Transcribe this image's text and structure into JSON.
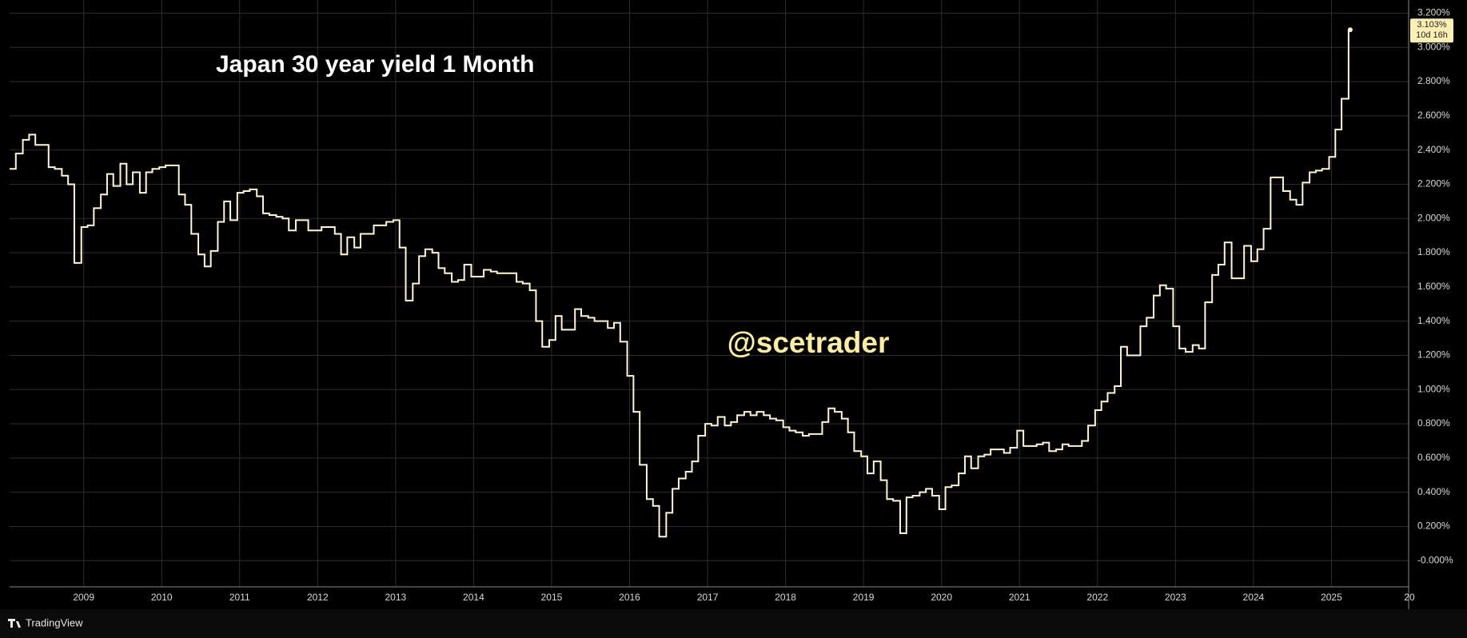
{
  "chart_data": {
    "type": "line",
    "step": "post",
    "title": "Japan 30 year yield 1 Month",
    "watermark": "@scetrader",
    "brand": "TradingView",
    "last_value_label": "3.103%",
    "countdown": "10d 16h",
    "color": "#fff6d5",
    "grid": true,
    "xlim": [
      2008.05,
      2025.99
    ],
    "ylim": [
      -0.153,
      3.277
    ],
    "xticks": [
      2009,
      2010,
      2011,
      2012,
      2013,
      2014,
      2015,
      2016,
      2017,
      2018,
      2019,
      2020,
      2021,
      2022,
      2023,
      2024,
      2025,
      {
        "value": 2026,
        "label": "20"
      }
    ],
    "yticks": [
      {
        "value": 0,
        "label": "-0.000%"
      },
      {
        "value": 0.2,
        "label": "0.200%"
      },
      {
        "value": 0.4,
        "label": "0.400%"
      },
      {
        "value": 0.6,
        "label": "0.600%"
      },
      {
        "value": 0.8,
        "label": "0.800%"
      },
      {
        "value": 1.0,
        "label": "1.000%"
      },
      {
        "value": 1.2,
        "label": "1.200%"
      },
      {
        "value": 1.4,
        "label": "1.400%"
      },
      {
        "value": 1.6,
        "label": "1.600%"
      },
      {
        "value": 1.8,
        "label": "1.800%"
      },
      {
        "value": 2.0,
        "label": "2.000%"
      },
      {
        "value": 2.2,
        "label": "2.200%"
      },
      {
        "value": 2.4,
        "label": "2.400%"
      },
      {
        "value": 2.6,
        "label": "2.600%"
      },
      {
        "value": 2.8,
        "label": "2.800%"
      },
      {
        "value": 3.0,
        "label": "3.000%"
      },
      {
        "value": 3.2,
        "label": "3.200%"
      }
    ],
    "x": [
      2008.05,
      2008.13,
      2008.22,
      2008.3,
      2008.38,
      2008.47,
      2008.55,
      2008.63,
      2008.72,
      2008.8,
      2008.88,
      2008.97,
      2009.05,
      2009.13,
      2009.22,
      2009.3,
      2009.38,
      2009.47,
      2009.55,
      2009.63,
      2009.72,
      2009.8,
      2009.88,
      2009.97,
      2010.05,
      2010.13,
      2010.22,
      2010.3,
      2010.38,
      2010.47,
      2010.55,
      2010.63,
      2010.72,
      2010.8,
      2010.88,
      2010.97,
      2011.05,
      2011.13,
      2011.22,
      2011.3,
      2011.38,
      2011.47,
      2011.55,
      2011.63,
      2011.72,
      2011.8,
      2011.88,
      2011.97,
      2012.05,
      2012.13,
      2012.22,
      2012.3,
      2012.38,
      2012.47,
      2012.55,
      2012.63,
      2012.72,
      2012.8,
      2012.88,
      2012.97,
      2013.05,
      2013.13,
      2013.22,
      2013.3,
      2013.38,
      2013.47,
      2013.55,
      2013.63,
      2013.72,
      2013.8,
      2013.88,
      2013.97,
      2014.05,
      2014.13,
      2014.22,
      2014.3,
      2014.38,
      2014.47,
      2014.55,
      2014.63,
      2014.72,
      2014.8,
      2014.88,
      2014.97,
      2015.05,
      2015.13,
      2015.22,
      2015.3,
      2015.38,
      2015.47,
      2015.55,
      2015.63,
      2015.72,
      2015.8,
      2015.88,
      2015.97,
      2016.05,
      2016.13,
      2016.22,
      2016.3,
      2016.38,
      2016.47,
      2016.55,
      2016.63,
      2016.72,
      2016.8,
      2016.88,
      2016.97,
      2017.05,
      2017.13,
      2017.22,
      2017.3,
      2017.38,
      2017.47,
      2017.55,
      2017.63,
      2017.72,
      2017.8,
      2017.88,
      2017.97,
      2018.05,
      2018.13,
      2018.22,
      2018.3,
      2018.38,
      2018.47,
      2018.55,
      2018.63,
      2018.72,
      2018.8,
      2018.88,
      2018.97,
      2019.05,
      2019.13,
      2019.22,
      2019.3,
      2019.38,
      2019.47,
      2019.55,
      2019.63,
      2019.72,
      2019.8,
      2019.88,
      2019.97,
      2020.05,
      2020.13,
      2020.22,
      2020.3,
      2020.38,
      2020.47,
      2020.55,
      2020.63,
      2020.72,
      2020.8,
      2020.88,
      2020.97,
      2021.05,
      2021.13,
      2021.22,
      2021.3,
      2021.38,
      2021.47,
      2021.55,
      2021.63,
      2021.72,
      2021.8,
      2021.88,
      2021.97,
      2022.05,
      2022.13,
      2022.22,
      2022.3,
      2022.38,
      2022.47,
      2022.55,
      2022.63,
      2022.72,
      2022.8,
      2022.88,
      2022.97,
      2023.05,
      2023.13,
      2023.22,
      2023.3,
      2023.38,
      2023.47,
      2023.55,
      2023.63,
      2023.72,
      2023.8,
      2023.88,
      2023.97,
      2024.05,
      2024.13,
      2024.22,
      2024.3,
      2024.38,
      2024.47,
      2024.55,
      2024.63,
      2024.72,
      2024.8,
      2024.88,
      2024.97,
      2025.05,
      2025.13,
      2025.22
    ],
    "values": [
      2.29,
      2.38,
      2.46,
      2.49,
      2.43,
      2.43,
      2.3,
      2.29,
      2.25,
      2.2,
      1.74,
      1.95,
      1.96,
      2.06,
      2.14,
      2.26,
      2.19,
      2.32,
      2.2,
      2.27,
      2.15,
      2.27,
      2.29,
      2.3,
      2.31,
      2.31,
      2.14,
      2.08,
      1.91,
      1.79,
      1.72,
      1.81,
      1.98,
      2.1,
      1.99,
      2.15,
      2.16,
      2.17,
      2.13,
      2.03,
      2.02,
      2.01,
      2.0,
      1.93,
      1.99,
      1.99,
      1.93,
      1.93,
      1.95,
      1.95,
      1.91,
      1.79,
      1.89,
      1.83,
      1.91,
      1.91,
      1.96,
      1.96,
      1.98,
      1.99,
      1.83,
      1.52,
      1.62,
      1.78,
      1.82,
      1.8,
      1.71,
      1.68,
      1.63,
      1.64,
      1.73,
      1.66,
      1.66,
      1.7,
      1.69,
      1.68,
      1.68,
      1.68,
      1.63,
      1.62,
      1.58,
      1.4,
      1.25,
      1.29,
      1.43,
      1.35,
      1.35,
      1.47,
      1.43,
      1.42,
      1.4,
      1.4,
      1.36,
      1.39,
      1.28,
      1.08,
      0.87,
      0.56,
      0.36,
      0.32,
      0.14,
      0.28,
      0.42,
      0.48,
      0.52,
      0.58,
      0.73,
      0.8,
      0.79,
      0.84,
      0.79,
      0.81,
      0.85,
      0.87,
      0.85,
      0.87,
      0.85,
      0.83,
      0.82,
      0.78,
      0.76,
      0.75,
      0.73,
      0.74,
      0.74,
      0.81,
      0.89,
      0.87,
      0.83,
      0.75,
      0.64,
      0.61,
      0.51,
      0.58,
      0.47,
      0.36,
      0.35,
      0.16,
      0.37,
      0.38,
      0.4,
      0.42,
      0.38,
      0.3,
      0.43,
      0.44,
      0.51,
      0.61,
      0.54,
      0.61,
      0.62,
      0.65,
      0.65,
      0.63,
      0.66,
      0.76,
      0.67,
      0.67,
      0.68,
      0.69,
      0.64,
      0.65,
      0.68,
      0.67,
      0.67,
      0.7,
      0.79,
      0.88,
      0.93,
      0.98,
      1.02,
      1.25,
      1.2,
      1.2,
      1.37,
      1.42,
      1.55,
      1.61,
      1.59,
      1.37,
      1.24,
      1.22,
      1.26,
      1.24,
      1.51,
      1.67,
      1.73,
      1.86,
      1.65,
      1.65,
      1.84,
      1.75,
      1.82,
      1.94,
      2.24,
      2.24,
      2.16,
      2.11,
      2.08,
      2.21,
      2.27,
      2.28,
      2.29,
      2.36,
      2.52,
      2.7,
      3.103
    ]
  }
}
